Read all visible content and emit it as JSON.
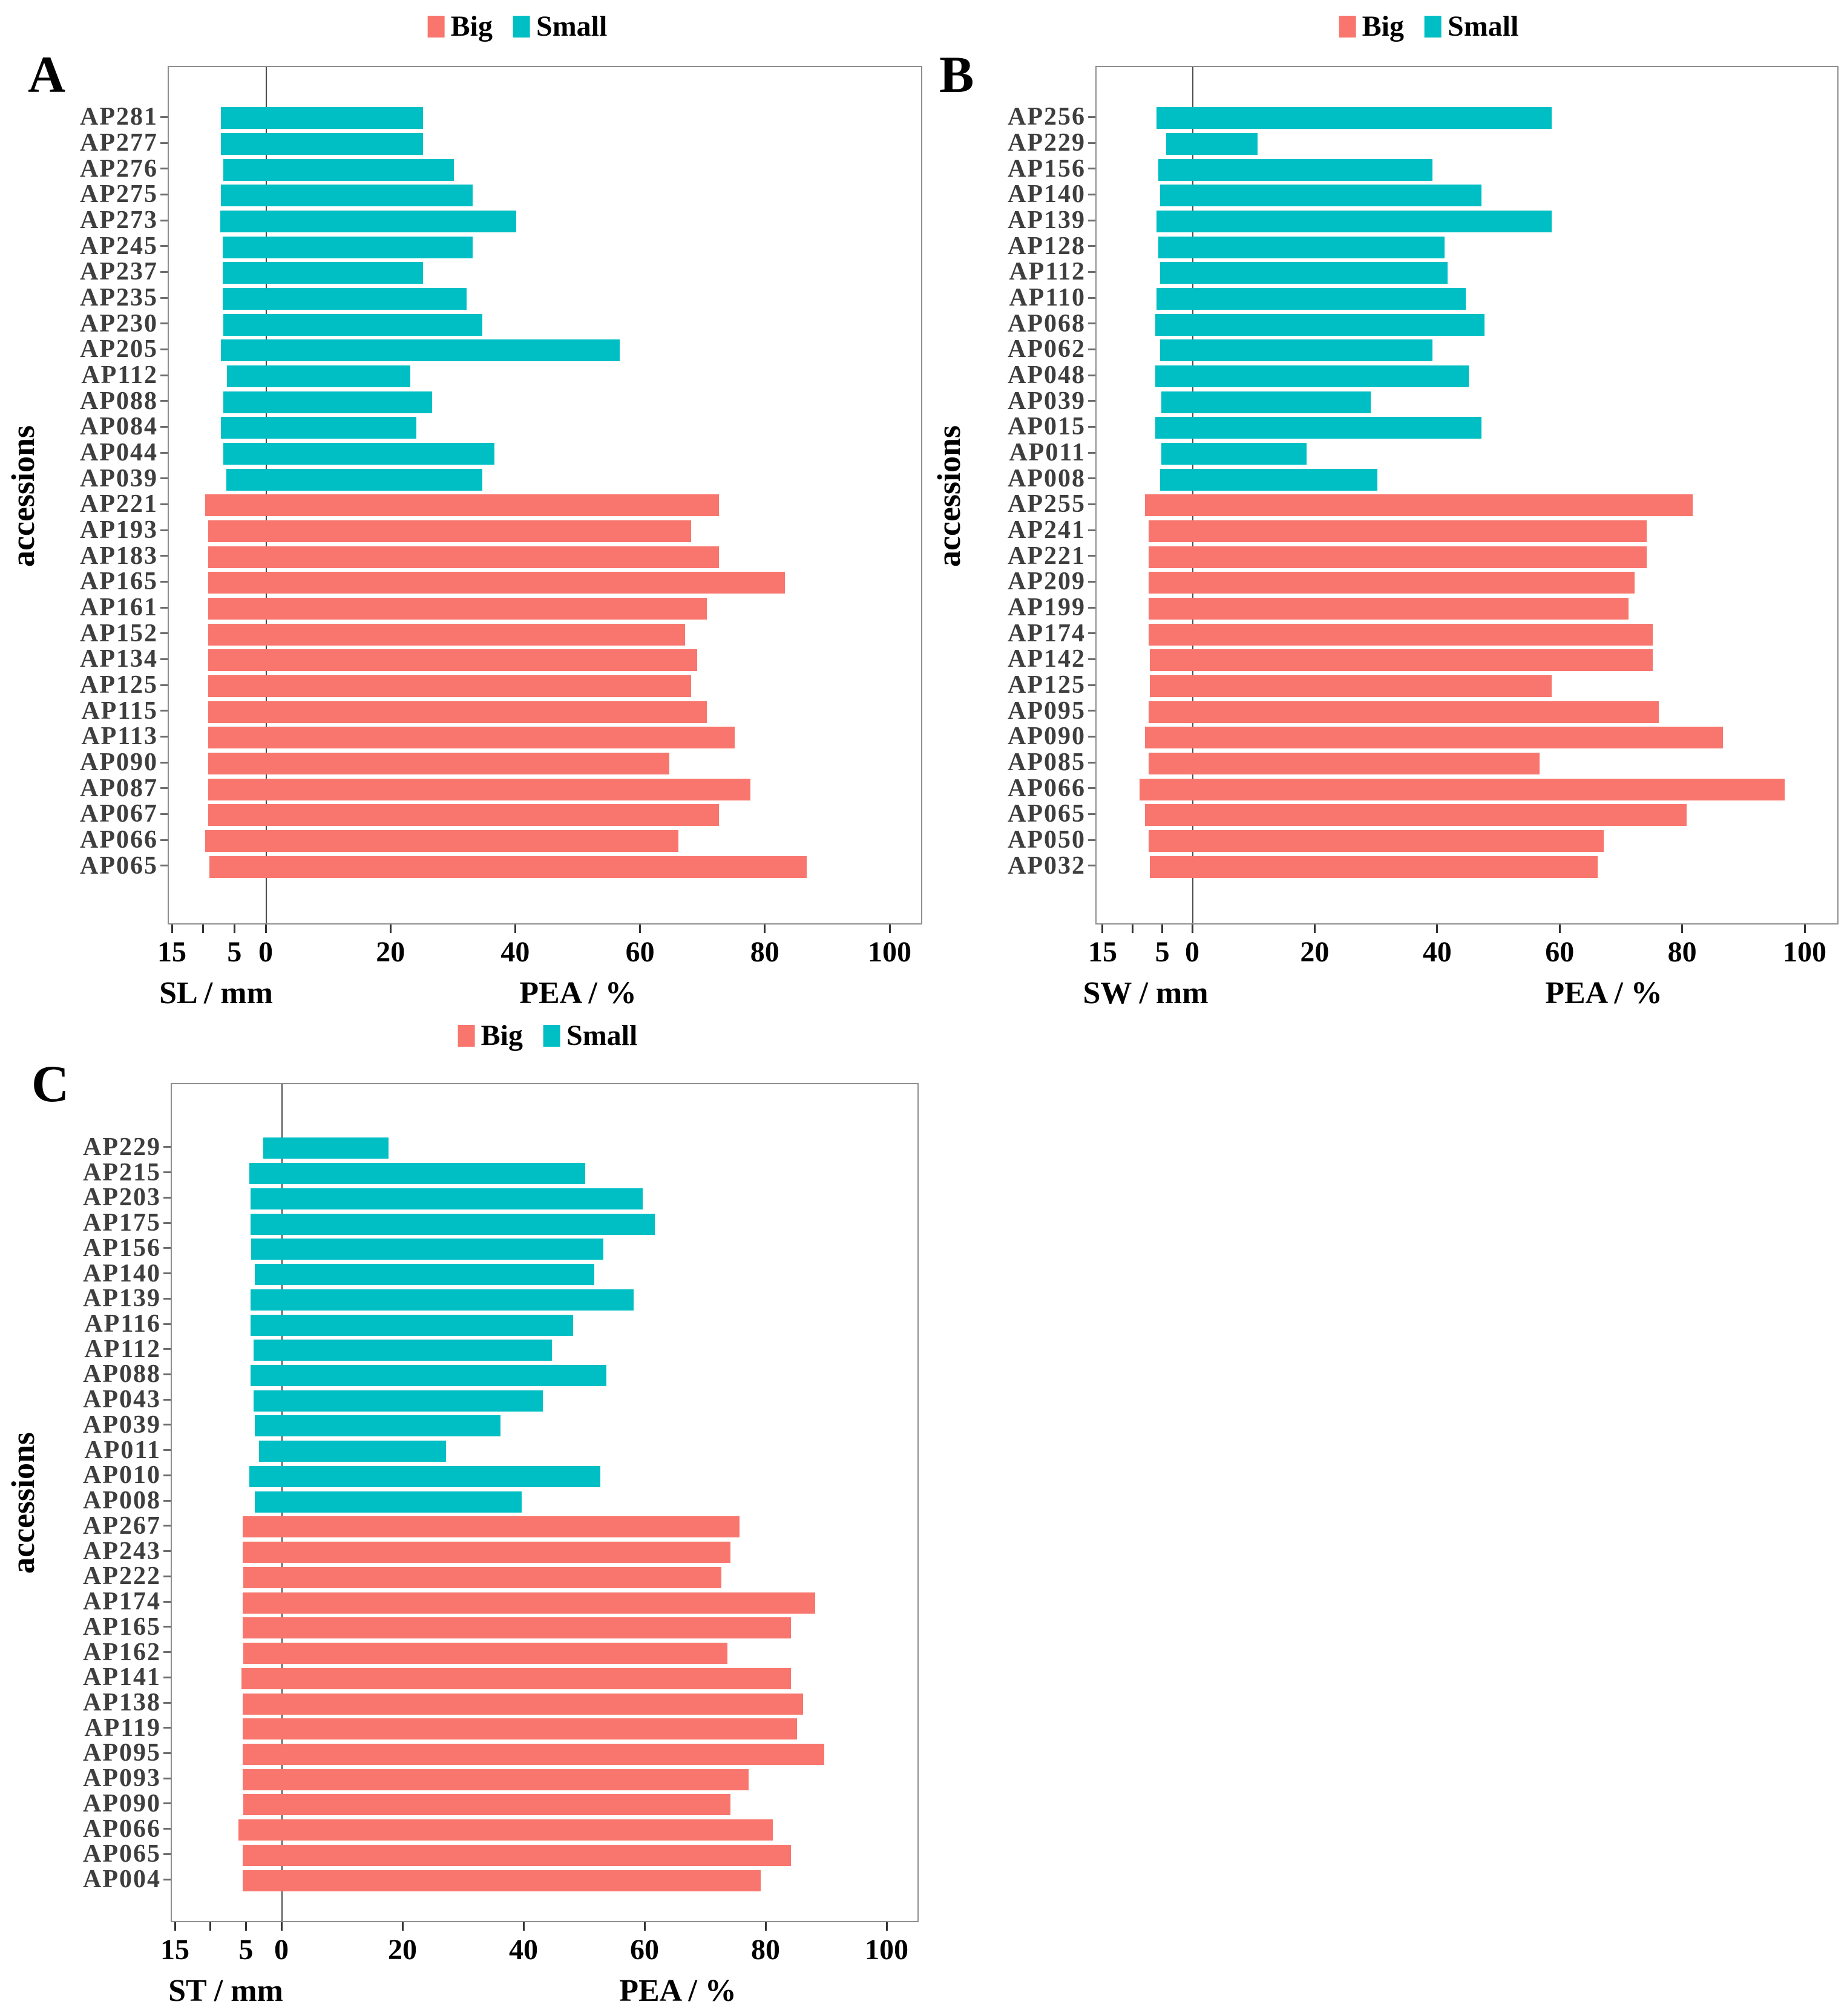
{
  "legend": {
    "big_label": "Big",
    "small_label": "Small",
    "big_color": "#F8766D",
    "small_color": "#00BFC4"
  },
  "chart_data": [
    {
      "type": "bar",
      "orientation": "horizontal-diverging",
      "panel": "A",
      "panel_letter": "A",
      "ylabel": "accessions",
      "legend_position": "top",
      "grid": false,
      "mm_axis": {
        "title": "SL / mm",
        "range": [
          0,
          15
        ],
        "ticks": [
          {
            "v": 15,
            "label": "15"
          },
          {
            "v": 10,
            "label": ""
          },
          {
            "v": 5,
            "label": "5"
          },
          {
            "v": 0,
            "label": "0"
          }
        ]
      },
      "pea_axis": {
        "title": "PEA / %",
        "range": [
          0,
          100
        ],
        "ticks": [
          {
            "v": 20,
            "label": "20"
          },
          {
            "v": 40,
            "label": "40"
          },
          {
            "v": 60,
            "label": "60"
          },
          {
            "v": 80,
            "label": "80"
          },
          {
            "v": 100,
            "label": "100"
          }
        ]
      },
      "rows": [
        {
          "label": "AP281",
          "group": "Small",
          "mm": 7.4,
          "pea": 25
        },
        {
          "label": "AP277",
          "group": "Small",
          "mm": 7.4,
          "pea": 25
        },
        {
          "label": "AP276",
          "group": "Small",
          "mm": 7.0,
          "pea": 30
        },
        {
          "label": "AP275",
          "group": "Small",
          "mm": 7.4,
          "pea": 33
        },
        {
          "label": "AP273",
          "group": "Small",
          "mm": 7.5,
          "pea": 40
        },
        {
          "label": "AP245",
          "group": "Small",
          "mm": 7.1,
          "pea": 33
        },
        {
          "label": "AP237",
          "group": "Small",
          "mm": 7.1,
          "pea": 25
        },
        {
          "label": "AP235",
          "group": "Small",
          "mm": 7.1,
          "pea": 32
        },
        {
          "label": "AP230",
          "group": "Small",
          "mm": 7.0,
          "pea": 34.5
        },
        {
          "label": "AP205",
          "group": "Small",
          "mm": 7.4,
          "pea": 56.5
        },
        {
          "label": "AP112",
          "group": "Small",
          "mm": 6.4,
          "pea": 23
        },
        {
          "label": "AP088",
          "group": "Small",
          "mm": 7.0,
          "pea": 26.5
        },
        {
          "label": "AP084",
          "group": "Small",
          "mm": 7.4,
          "pea": 24
        },
        {
          "label": "AP044",
          "group": "Small",
          "mm": 7.0,
          "pea": 36.5
        },
        {
          "label": "AP039",
          "group": "Small",
          "mm": 6.5,
          "pea": 34.5
        },
        {
          "label": "AP221",
          "group": "Big",
          "mm": 9.9,
          "pea": 72.5
        },
        {
          "label": "AP193",
          "group": "Big",
          "mm": 9.4,
          "pea": 68
        },
        {
          "label": "AP183",
          "group": "Big",
          "mm": 9.4,
          "pea": 72.5
        },
        {
          "label": "AP165",
          "group": "Big",
          "mm": 9.4,
          "pea": 83
        },
        {
          "label": "AP161",
          "group": "Big",
          "mm": 9.4,
          "pea": 70.5
        },
        {
          "label": "AP152",
          "group": "Big",
          "mm": 9.4,
          "pea": 67
        },
        {
          "label": "AP134",
          "group": "Big",
          "mm": 9.4,
          "pea": 69
        },
        {
          "label": "AP125",
          "group": "Big",
          "mm": 9.4,
          "pea": 68
        },
        {
          "label": "AP115",
          "group": "Big",
          "mm": 9.4,
          "pea": 70.5
        },
        {
          "label": "AP113",
          "group": "Big",
          "mm": 9.4,
          "pea": 75
        },
        {
          "label": "AP090",
          "group": "Big",
          "mm": 9.4,
          "pea": 64.5
        },
        {
          "label": "AP087",
          "group": "Big",
          "mm": 9.4,
          "pea": 77.5
        },
        {
          "label": "AP067",
          "group": "Big",
          "mm": 9.4,
          "pea": 72.5
        },
        {
          "label": "AP066",
          "group": "Big",
          "mm": 9.9,
          "pea": 66
        },
        {
          "label": "AP065",
          "group": "Big",
          "mm": 9.2,
          "pea": 86.5
        }
      ]
    },
    {
      "type": "bar",
      "orientation": "horizontal-diverging",
      "panel": "B",
      "panel_letter": "B",
      "ylabel": "accessions",
      "legend_position": "top",
      "grid": false,
      "mm_axis": {
        "title": "SW / mm",
        "range": [
          0,
          15
        ],
        "ticks": [
          {
            "v": 15,
            "label": "15"
          },
          {
            "v": 10,
            "label": ""
          },
          {
            "v": 5,
            "label": "5"
          },
          {
            "v": 0,
            "label": "0"
          }
        ]
      },
      "pea_axis": {
        "title": "PEA / %",
        "range": [
          0,
          100
        ],
        "ticks": [
          {
            "v": 20,
            "label": "20"
          },
          {
            "v": 40,
            "label": "40"
          },
          {
            "v": 60,
            "label": "60"
          },
          {
            "v": 80,
            "label": "80"
          },
          {
            "v": 100,
            "label": "100"
          }
        ]
      },
      "rows": [
        {
          "label": "AP256",
          "group": "Small",
          "mm": 6.2,
          "pea": 58.5
        },
        {
          "label": "AP229",
          "group": "Small",
          "mm": 4.6,
          "pea": 10.5
        },
        {
          "label": "AP156",
          "group": "Small",
          "mm": 5.9,
          "pea": 39
        },
        {
          "label": "AP140",
          "group": "Small",
          "mm": 5.6,
          "pea": 47
        },
        {
          "label": "AP139",
          "group": "Small",
          "mm": 6.2,
          "pea": 58.5
        },
        {
          "label": "AP128",
          "group": "Small",
          "mm": 5.9,
          "pea": 41
        },
        {
          "label": "AP112",
          "group": "Small",
          "mm": 5.6,
          "pea": 41.5
        },
        {
          "label": "AP110",
          "group": "Small",
          "mm": 6.2,
          "pea": 44.5
        },
        {
          "label": "AP068",
          "group": "Small",
          "mm": 6.4,
          "pea": 47.5
        },
        {
          "label": "AP062",
          "group": "Small",
          "mm": 5.6,
          "pea": 39
        },
        {
          "label": "AP048",
          "group": "Small",
          "mm": 6.4,
          "pea": 45
        },
        {
          "label": "AP039",
          "group": "Small",
          "mm": 5.4,
          "pea": 29
        },
        {
          "label": "AP015",
          "group": "Small",
          "mm": 6.4,
          "pea": 47
        },
        {
          "label": "AP011",
          "group": "Small",
          "mm": 5.4,
          "pea": 18.5
        },
        {
          "label": "AP008",
          "group": "Small",
          "mm": 5.6,
          "pea": 30
        },
        {
          "label": "AP255",
          "group": "Big",
          "mm": 8.1,
          "pea": 81.5
        },
        {
          "label": "AP241",
          "group": "Big",
          "mm": 7.5,
          "pea": 74
        },
        {
          "label": "AP221",
          "group": "Big",
          "mm": 7.5,
          "pea": 74
        },
        {
          "label": "AP209",
          "group": "Big",
          "mm": 7.5,
          "pea": 72
        },
        {
          "label": "AP199",
          "group": "Big",
          "mm": 7.5,
          "pea": 71
        },
        {
          "label": "AP174",
          "group": "Big",
          "mm": 7.5,
          "pea": 75
        },
        {
          "label": "AP142",
          "group": "Big",
          "mm": 7.3,
          "pea": 75
        },
        {
          "label": "AP125",
          "group": "Big",
          "mm": 7.3,
          "pea": 58.5
        },
        {
          "label": "AP095",
          "group": "Big",
          "mm": 7.5,
          "pea": 76
        },
        {
          "label": "AP090",
          "group": "Big",
          "mm": 8.1,
          "pea": 86.5
        },
        {
          "label": "AP085",
          "group": "Big",
          "mm": 7.5,
          "pea": 56.5
        },
        {
          "label": "AP066",
          "group": "Big",
          "mm": 9.0,
          "pea": 96.5
        },
        {
          "label": "AP065",
          "group": "Big",
          "mm": 8.1,
          "pea": 80.5
        },
        {
          "label": "AP050",
          "group": "Big",
          "mm": 7.5,
          "pea": 67
        },
        {
          "label": "AP032",
          "group": "Big",
          "mm": 7.3,
          "pea": 66
        }
      ]
    },
    {
      "type": "bar",
      "orientation": "horizontal-diverging",
      "panel": "C",
      "panel_letter": "C",
      "ylabel": "accessions",
      "legend_position": "top",
      "grid": false,
      "mm_axis": {
        "title": "ST / mm",
        "range": [
          0,
          15
        ],
        "ticks": [
          {
            "v": 15,
            "label": "15"
          },
          {
            "v": 10,
            "label": ""
          },
          {
            "v": 5,
            "label": "5"
          },
          {
            "v": 0,
            "label": "0"
          }
        ]
      },
      "pea_axis": {
        "title": "PEA / %",
        "range": [
          0,
          100
        ],
        "ticks": [
          {
            "v": 20,
            "label": "20"
          },
          {
            "v": 40,
            "label": "40"
          },
          {
            "v": 60,
            "label": "60"
          },
          {
            "v": 80,
            "label": "80"
          },
          {
            "v": 100,
            "label": "100"
          }
        ]
      },
      "rows": [
        {
          "label": "AP229",
          "group": "Small",
          "mm": 2.7,
          "pea": 17.5
        },
        {
          "label": "AP215",
          "group": "Small",
          "mm": 4.7,
          "pea": 50
        },
        {
          "label": "AP203",
          "group": "Small",
          "mm": 4.5,
          "pea": 59.5
        },
        {
          "label": "AP175",
          "group": "Small",
          "mm": 4.5,
          "pea": 61.5
        },
        {
          "label": "AP156",
          "group": "Small",
          "mm": 4.4,
          "pea": 53
        },
        {
          "label": "AP140",
          "group": "Small",
          "mm": 3.9,
          "pea": 51.5
        },
        {
          "label": "AP139",
          "group": "Small",
          "mm": 4.5,
          "pea": 58
        },
        {
          "label": "AP116",
          "group": "Small",
          "mm": 4.5,
          "pea": 48
        },
        {
          "label": "AP112",
          "group": "Small",
          "mm": 4.1,
          "pea": 44.5
        },
        {
          "label": "AP088",
          "group": "Small",
          "mm": 4.5,
          "pea": 53.5
        },
        {
          "label": "AP043",
          "group": "Small",
          "mm": 4.1,
          "pea": 43
        },
        {
          "label": "AP039",
          "group": "Small",
          "mm": 3.9,
          "pea": 36
        },
        {
          "label": "AP011",
          "group": "Small",
          "mm": 3.3,
          "pea": 27
        },
        {
          "label": "AP010",
          "group": "Small",
          "mm": 4.7,
          "pea": 52.5
        },
        {
          "label": "AP008",
          "group": "Small",
          "mm": 3.9,
          "pea": 39.5
        },
        {
          "label": "AP267",
          "group": "Big",
          "mm": 5.6,
          "pea": 75.5
        },
        {
          "label": "AP243",
          "group": "Big",
          "mm": 5.6,
          "pea": 74
        },
        {
          "label": "AP222",
          "group": "Big",
          "mm": 5.5,
          "pea": 72.5
        },
        {
          "label": "AP174",
          "group": "Big",
          "mm": 5.6,
          "pea": 88
        },
        {
          "label": "AP165",
          "group": "Big",
          "mm": 5.6,
          "pea": 84
        },
        {
          "label": "AP162",
          "group": "Big",
          "mm": 5.5,
          "pea": 73.5
        },
        {
          "label": "AP141",
          "group": "Big",
          "mm": 5.8,
          "pea": 84
        },
        {
          "label": "AP138",
          "group": "Big",
          "mm": 5.6,
          "pea": 86
        },
        {
          "label": "AP119",
          "group": "Big",
          "mm": 5.6,
          "pea": 85
        },
        {
          "label": "AP095",
          "group": "Big",
          "mm": 5.6,
          "pea": 89.5
        },
        {
          "label": "AP093",
          "group": "Big",
          "mm": 5.6,
          "pea": 77
        },
        {
          "label": "AP090",
          "group": "Big",
          "mm": 5.5,
          "pea": 74
        },
        {
          "label": "AP066",
          "group": "Big",
          "mm": 6.2,
          "pea": 81
        },
        {
          "label": "AP065",
          "group": "Big",
          "mm": 5.6,
          "pea": 84
        },
        {
          "label": "AP004",
          "group": "Big",
          "mm": 5.6,
          "pea": 79
        }
      ]
    }
  ]
}
